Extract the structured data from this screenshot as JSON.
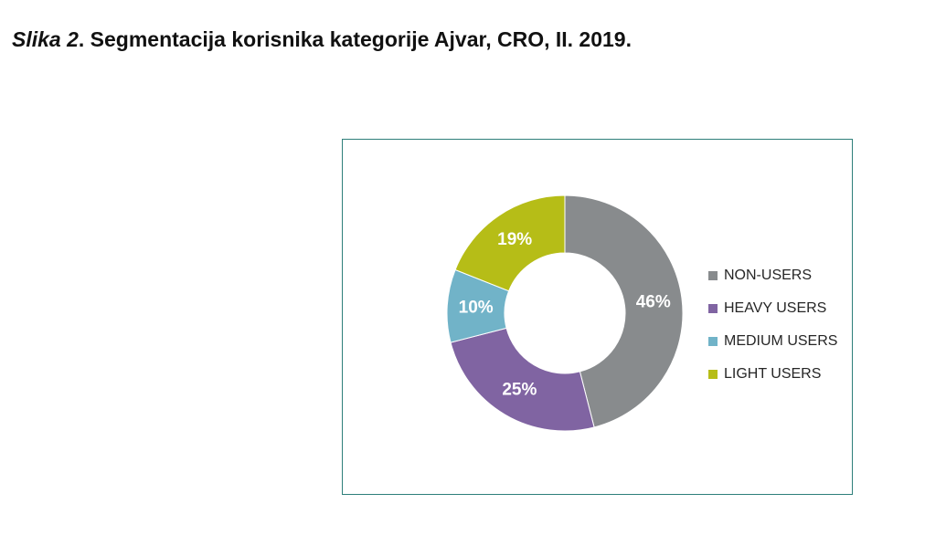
{
  "caption": {
    "figure_label": "Slika 2",
    "text": ". Segmentacija korisnika kategorije Ajvar, CRO, II. 2019."
  },
  "chart_data": {
    "type": "pie",
    "style": "donut",
    "legend_position": "right",
    "segments": [
      {
        "name": "NON-USERS",
        "value": 46,
        "label": "46%",
        "color": "#888b8d"
      },
      {
        "name": "HEAVY USERS",
        "value": 25,
        "label": "25%",
        "color": "#8064a2"
      },
      {
        "name": "MEDIUM USERS",
        "value": 10,
        "label": "10%",
        "color": "#71b3c8"
      },
      {
        "name": "LIGHT USERS",
        "value": 19,
        "label": "19%",
        "color": "#b6bd17"
      }
    ]
  }
}
